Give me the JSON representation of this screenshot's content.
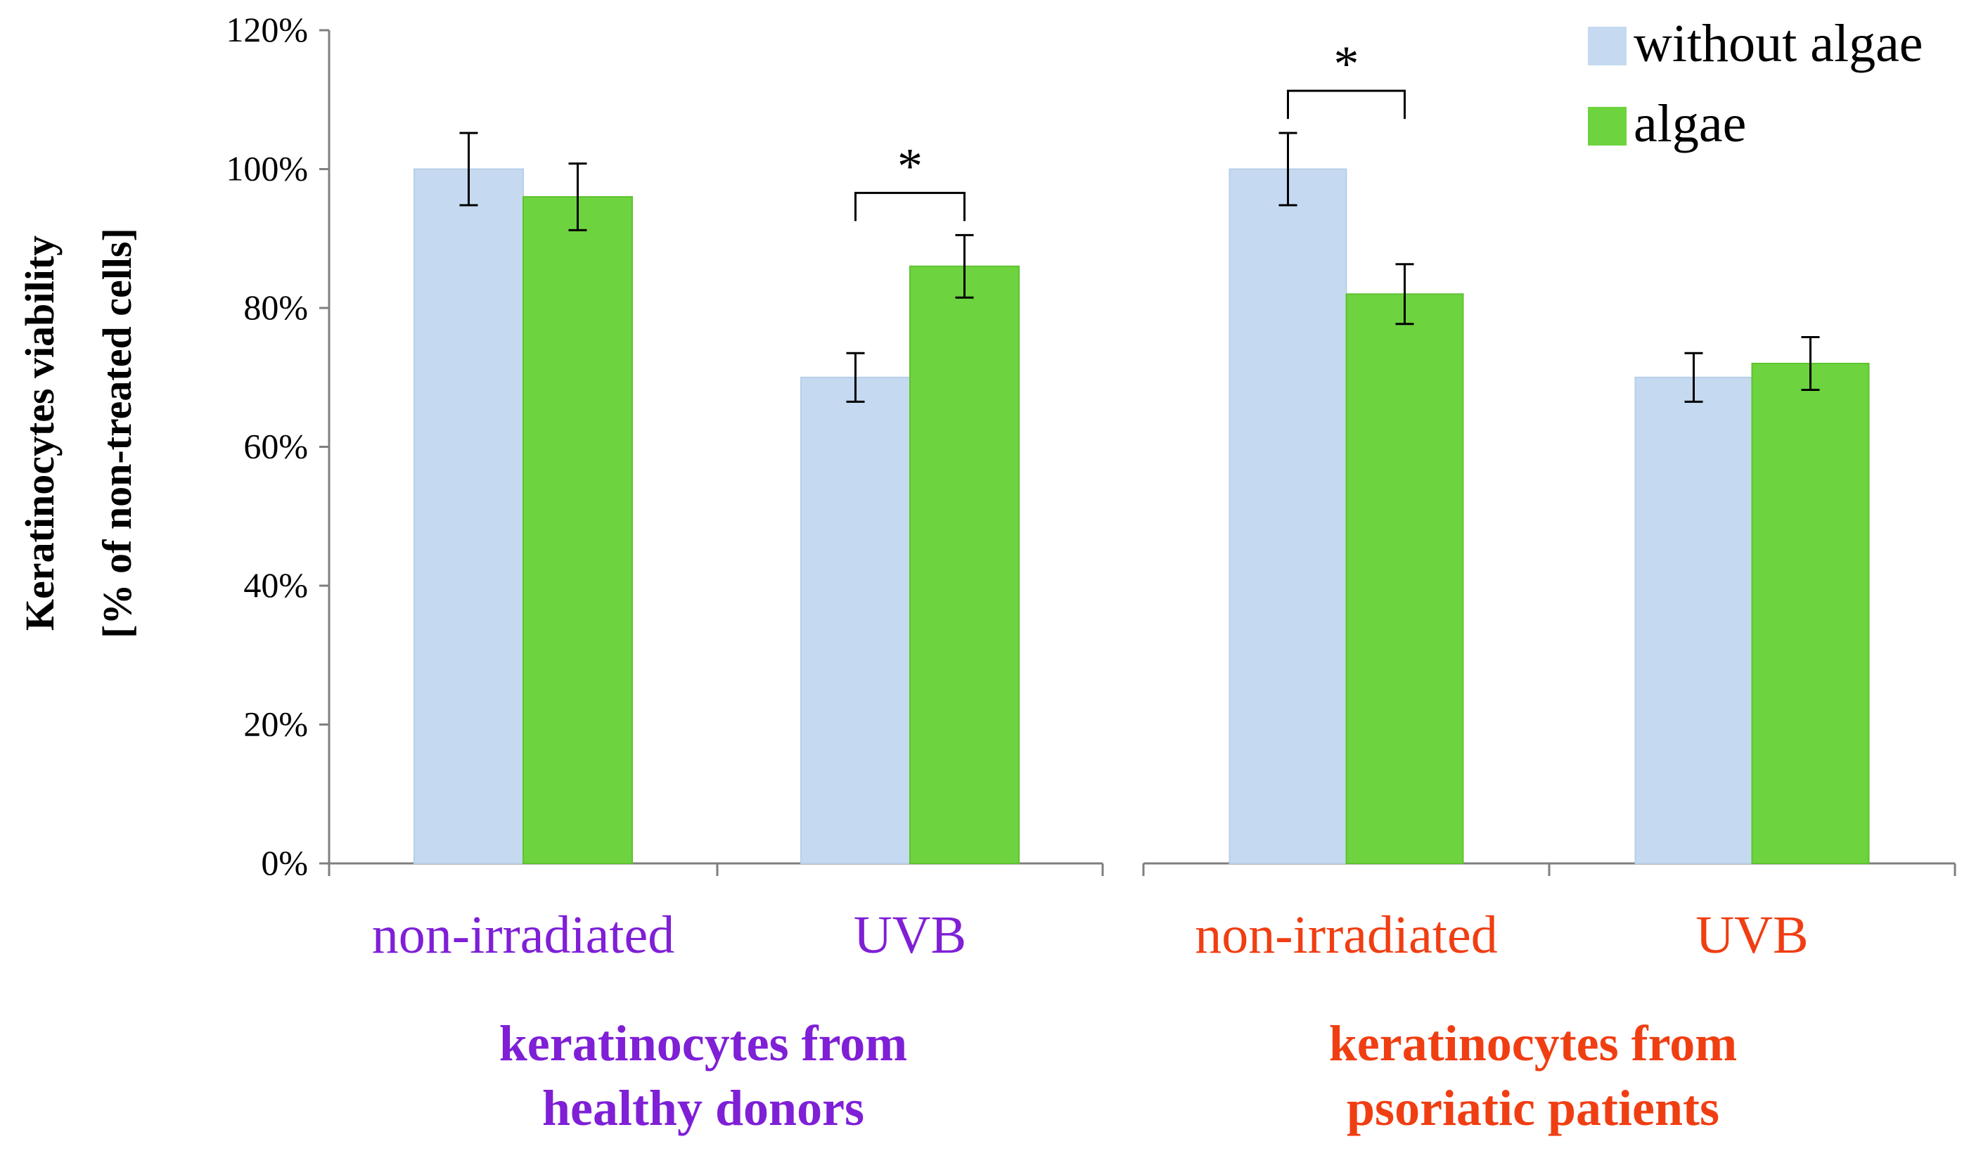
{
  "chart_data": {
    "type": "bar",
    "title": "",
    "ylabel": [
      "Keratinocytes viability",
      "[% of non-treated cells]"
    ],
    "xlabel": "",
    "ylim": [
      0,
      120
    ],
    "yticks": [
      0,
      20,
      40,
      60,
      80,
      100,
      120
    ],
    "ytick_labels": [
      "0%",
      "20%",
      "40%",
      "60%",
      "80%",
      "100%",
      "120%"
    ],
    "grid": false,
    "legend_position": "top-right",
    "series": [
      {
        "name": "without algae",
        "color": "#c5daf0"
      },
      {
        "name": "algae",
        "color": "#6dd33f"
      }
    ],
    "groups": [
      {
        "label_lines": [
          "keratinocytes from",
          "healthy donors"
        ],
        "color": "#7f1fd6",
        "categories": [
          {
            "label": "non-irradiated",
            "values": [
              100,
              96
            ],
            "errors": [
              5.2,
              4.8
            ],
            "significance": null
          },
          {
            "label": "UVB",
            "values": [
              70,
              86
            ],
            "errors": [
              3.5,
              4.5
            ],
            "significance": "*"
          }
        ]
      },
      {
        "label_lines": [
          "keratinocytes from",
          "psoriatic patients"
        ],
        "color": "#f03e13",
        "categories": [
          {
            "label": "non-irradiated",
            "values": [
              100,
              82
            ],
            "errors": [
              5.2,
              4.3
            ],
            "significance": "*"
          },
          {
            "label": "UVB",
            "values": [
              70,
              72
            ],
            "errors": [
              3.5,
              3.8
            ],
            "significance": null
          }
        ]
      }
    ]
  }
}
